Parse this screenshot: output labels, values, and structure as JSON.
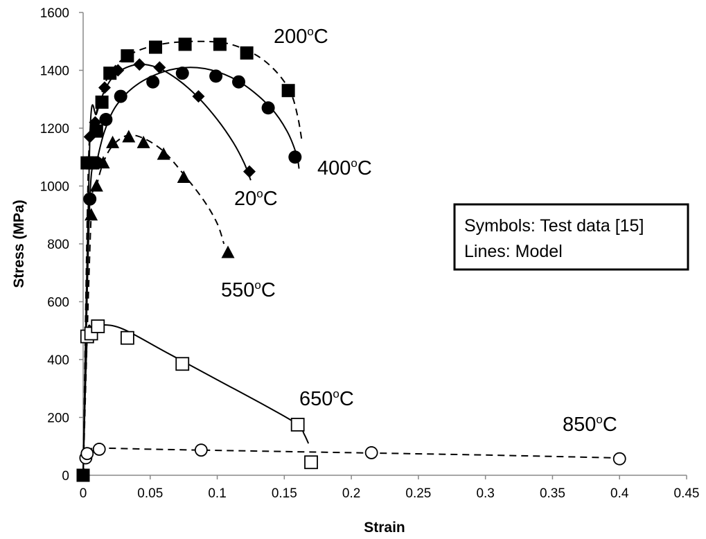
{
  "chart_data": {
    "type": "scatter",
    "title": "",
    "xlabel": "Strain",
    "ylabel": "Stress (MPa)",
    "xlim": [
      0,
      0.45
    ],
    "ylim": [
      0,
      1600
    ],
    "x_ticks": [
      "0",
      "0.05",
      "0.1",
      "0.15",
      "0.2",
      "0.25",
      "0.3",
      "0.35",
      "0.4",
      "0.45"
    ],
    "y_ticks": [
      "0",
      "200",
      "400",
      "600",
      "800",
      "1000",
      "1200",
      "1400",
      "1600"
    ],
    "grid": false,
    "legend_box": {
      "lines": [
        "Symbols: Test data [15]",
        "Lines: Model"
      ]
    },
    "series": [
      {
        "name": "200",
        "label_main": "200",
        "label_sup": "o",
        "label_unit": "C",
        "marker": "filled-square",
        "line_style": "dashed",
        "points": [
          [
            0,
            0
          ],
          [
            0.003,
            1080
          ],
          [
            0.007,
            1080
          ],
          [
            0.01,
            1190
          ],
          [
            0.014,
            1290
          ],
          [
            0.02,
            1390
          ],
          [
            0.033,
            1450
          ],
          [
            0.054,
            1480
          ],
          [
            0.076,
            1490
          ],
          [
            0.102,
            1490
          ],
          [
            0.122,
            1460
          ],
          [
            0.153,
            1330
          ]
        ],
        "curve": [
          [
            0,
            0
          ],
          [
            0.004,
            1080
          ],
          [
            0.008,
            1210
          ],
          [
            0.013,
            1310
          ],
          [
            0.02,
            1390
          ],
          [
            0.03,
            1440
          ],
          [
            0.045,
            1475
          ],
          [
            0.065,
            1495
          ],
          [
            0.09,
            1500
          ],
          [
            0.11,
            1490
          ],
          [
            0.13,
            1450
          ],
          [
            0.145,
            1390
          ],
          [
            0.155,
            1320
          ],
          [
            0.16,
            1240
          ],
          [
            0.163,
            1160
          ]
        ]
      },
      {
        "name": "20",
        "label_main": "20",
        "label_sup": "o",
        "label_unit": "C",
        "marker": "filled-diamond",
        "line_style": "solid",
        "points": [
          [
            0.005,
            1170
          ],
          [
            0.009,
            1220
          ],
          [
            0.016,
            1340
          ],
          [
            0.026,
            1400
          ],
          [
            0.042,
            1420
          ],
          [
            0.057,
            1410
          ],
          [
            0.086,
            1310
          ],
          [
            0.124,
            1050
          ]
        ],
        "curve": [
          [
            0,
            0
          ],
          [
            0.005,
            1170
          ],
          [
            0.01,
            1250
          ],
          [
            0.016,
            1330
          ],
          [
            0.025,
            1390
          ],
          [
            0.04,
            1420
          ],
          [
            0.055,
            1410
          ],
          [
            0.07,
            1370
          ],
          [
            0.085,
            1310
          ],
          [
            0.1,
            1230
          ],
          [
            0.112,
            1150
          ],
          [
            0.12,
            1080
          ],
          [
            0.125,
            1020
          ]
        ]
      },
      {
        "name": "400",
        "label_main": "400",
        "label_sup": "o",
        "label_unit": "C",
        "marker": "filled-circle",
        "line_style": "solid",
        "points": [
          [
            0.005,
            955
          ],
          [
            0.01,
            1080
          ],
          [
            0.017,
            1230
          ],
          [
            0.028,
            1310
          ],
          [
            0.052,
            1360
          ],
          [
            0.074,
            1390
          ],
          [
            0.099,
            1380
          ],
          [
            0.116,
            1360
          ],
          [
            0.138,
            1270
          ],
          [
            0.158,
            1100
          ]
        ],
        "curve": [
          [
            0,
            0
          ],
          [
            0.005,
            955
          ],
          [
            0.01,
            1080
          ],
          [
            0.016,
            1190
          ],
          [
            0.025,
            1280
          ],
          [
            0.04,
            1350
          ],
          [
            0.06,
            1395
          ],
          [
            0.08,
            1410
          ],
          [
            0.1,
            1395
          ],
          [
            0.12,
            1350
          ],
          [
            0.14,
            1270
          ],
          [
            0.152,
            1190
          ],
          [
            0.159,
            1110
          ],
          [
            0.161,
            1060
          ]
        ]
      },
      {
        "name": "550",
        "label_main": "550",
        "label_sup": "o",
        "label_unit": "C",
        "marker": "filled-triangle",
        "line_style": "dashed",
        "points": [
          [
            0.006,
            900
          ],
          [
            0.01,
            1000
          ],
          [
            0.015,
            1080
          ],
          [
            0.022,
            1150
          ],
          [
            0.034,
            1170
          ],
          [
            0.045,
            1150
          ],
          [
            0.06,
            1110
          ],
          [
            0.075,
            1030
          ],
          [
            0.108,
            770
          ]
        ],
        "curve": [
          [
            0,
            0
          ],
          [
            0.006,
            900
          ],
          [
            0.01,
            1000
          ],
          [
            0.015,
            1080
          ],
          [
            0.022,
            1140
          ],
          [
            0.033,
            1175
          ],
          [
            0.045,
            1165
          ],
          [
            0.06,
            1120
          ],
          [
            0.075,
            1040
          ],
          [
            0.09,
            950
          ],
          [
            0.1,
            870
          ],
          [
            0.105,
            800
          ]
        ]
      },
      {
        "name": "650",
        "label_main": "650",
        "label_sup": "o",
        "label_unit": "C",
        "marker": "open-square",
        "line_style": "solid",
        "points": [
          [
            0.003,
            480
          ],
          [
            0.006,
            490
          ],
          [
            0.011,
            515
          ],
          [
            0.033,
            475
          ],
          [
            0.074,
            385
          ],
          [
            0.16,
            175
          ],
          [
            0.17,
            45
          ]
        ],
        "curve": [
          [
            0,
            0
          ],
          [
            0.003,
            470
          ],
          [
            0.007,
            510
          ],
          [
            0.015,
            520
          ],
          [
            0.03,
            505
          ],
          [
            0.06,
            430
          ],
          [
            0.1,
            330
          ],
          [
            0.14,
            230
          ],
          [
            0.16,
            175
          ],
          [
            0.165,
            140
          ],
          [
            0.168,
            110
          ]
        ]
      },
      {
        "name": "850",
        "label_main": "850",
        "label_sup": "o",
        "label_unit": "C",
        "marker": "open-circle",
        "line_style": "dashed",
        "points": [
          [
            0.002,
            60
          ],
          [
            0.003,
            75
          ],
          [
            0.012,
            90
          ],
          [
            0.088,
            87
          ],
          [
            0.215,
            78
          ],
          [
            0.4,
            57
          ]
        ],
        "curve": [
          [
            0,
            0
          ],
          [
            0.003,
            80
          ],
          [
            0.012,
            93
          ],
          [
            0.05,
            90
          ],
          [
            0.1,
            86
          ],
          [
            0.2,
            78
          ],
          [
            0.3,
            70
          ],
          [
            0.4,
            60
          ]
        ]
      }
    ]
  }
}
